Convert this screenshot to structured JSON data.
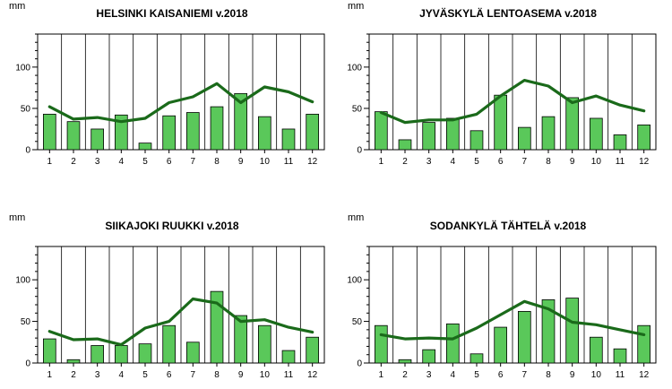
{
  "colors": {
    "bar_fill": "#5ac85a",
    "line": "#1a6a1a"
  },
  "chart_data": [
    {
      "type": "bar",
      "title": "HELSINKI KAISANIEMI v.2018",
      "unit": "mm",
      "categories": [
        "1",
        "2",
        "3",
        "4",
        "5",
        "6",
        "7",
        "8",
        "9",
        "10",
        "11",
        "12"
      ],
      "ylim": [
        0,
        140
      ],
      "yticks": [
        0,
        50,
        100
      ],
      "grid": "vertical",
      "series": [
        {
          "kind": "bar",
          "values": [
            43,
            34,
            25,
            42,
            8,
            41,
            45,
            52,
            68,
            40,
            25,
            43
          ]
        },
        {
          "kind": "line",
          "values": [
            52,
            37,
            39,
            34,
            38,
            57,
            64,
            80,
            57,
            76,
            70,
            58
          ]
        }
      ]
    },
    {
      "type": "bar",
      "title": "JYVÄSKYLÄ LENTOASEMA v.2018",
      "unit": "mm",
      "categories": [
        "1",
        "2",
        "3",
        "4",
        "5",
        "6",
        "7",
        "8",
        "9",
        "10",
        "11",
        "12"
      ],
      "ylim": [
        0,
        140
      ],
      "yticks": [
        0,
        50,
        100
      ],
      "grid": "vertical",
      "series": [
        {
          "kind": "bar",
          "values": [
            46,
            12,
            33,
            38,
            23,
            66,
            27,
            40,
            63,
            38,
            18,
            30
          ]
        },
        {
          "kind": "line",
          "values": [
            45,
            33,
            36,
            36,
            43,
            65,
            84,
            77,
            57,
            65,
            54,
            47
          ]
        }
      ]
    },
    {
      "type": "bar",
      "title": "SIIKAJOKI RUUKKI v.2018",
      "unit": "mm",
      "categories": [
        "1",
        "2",
        "3",
        "4",
        "5",
        "6",
        "7",
        "8",
        "9",
        "10",
        "11",
        "12"
      ],
      "ylim": [
        0,
        140
      ],
      "yticks": [
        0,
        50,
        100
      ],
      "grid": "vertical",
      "series": [
        {
          "kind": "bar",
          "values": [
            29,
            4,
            21,
            21,
            23,
            45,
            25,
            86,
            57,
            45,
            15,
            31
          ]
        },
        {
          "kind": "line",
          "values": [
            38,
            28,
            29,
            22,
            42,
            50,
            77,
            72,
            50,
            52,
            43,
            37
          ]
        }
      ]
    },
    {
      "type": "bar",
      "title": "SODANKYLÄ TÄHTELÄ v.2018",
      "unit": "mm",
      "categories": [
        "1",
        "2",
        "3",
        "4",
        "5",
        "6",
        "7",
        "8",
        "9",
        "10",
        "11",
        "12"
      ],
      "ylim": [
        0,
        140
      ],
      "yticks": [
        0,
        50,
        100
      ],
      "grid": "vertical",
      "series": [
        {
          "kind": "bar",
          "values": [
            45,
            4,
            16,
            47,
            11,
            43,
            62,
            76,
            78,
            31,
            17,
            45
          ]
        },
        {
          "kind": "line",
          "values": [
            34,
            29,
            30,
            29,
            42,
            58,
            74,
            65,
            49,
            46,
            40,
            34
          ]
        }
      ]
    }
  ]
}
